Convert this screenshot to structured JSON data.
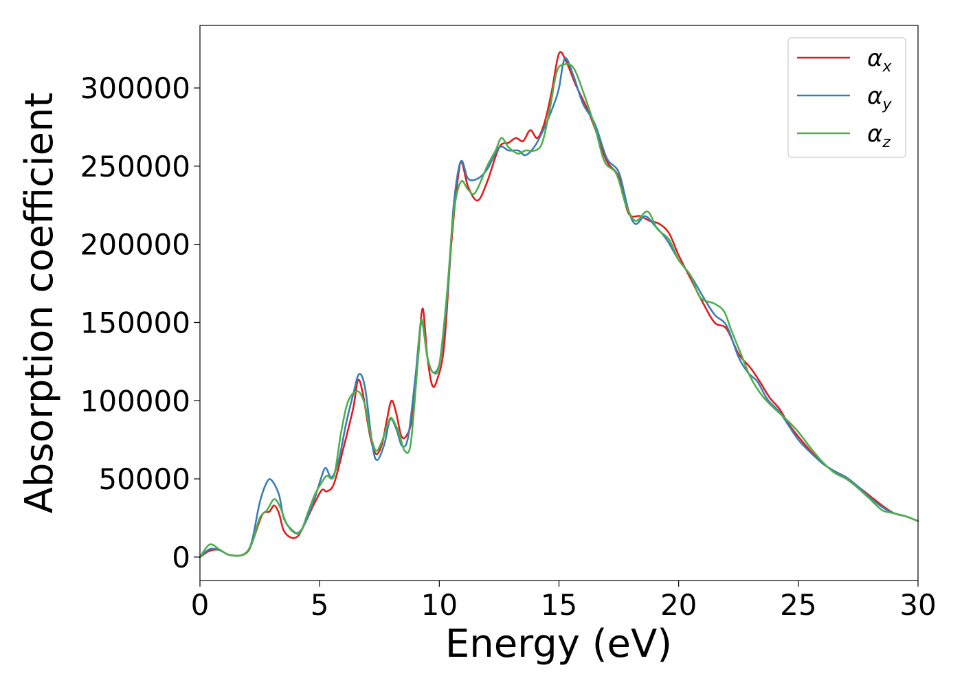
{
  "chart_data": {
    "type": "line",
    "xlabel": "Energy (eV)",
    "ylabel": "Absorption coefficient",
    "xlim": [
      0,
      30
    ],
    "ylim": [
      -15000,
      340000
    ],
    "xticks": [
      0,
      5,
      10,
      15,
      20,
      25,
      30
    ],
    "yticks": [
      0,
      50000,
      100000,
      150000,
      200000,
      250000,
      300000
    ],
    "xtick_labels": [
      "0",
      "5",
      "10",
      "15",
      "20",
      "25",
      "30"
    ],
    "ytick_labels": [
      "0",
      "50000",
      "100000",
      "150000",
      "200000",
      "250000",
      "300000"
    ],
    "grid": false,
    "legend_position": "top-right",
    "series": [
      {
        "name": "α_x",
        "label_main": "α",
        "label_sub": "x",
        "color": "#e41a1c",
        "points": [
          [
            0,
            0
          ],
          [
            0.4,
            4000
          ],
          [
            0.8,
            4500
          ],
          [
            1.2,
            1500
          ],
          [
            1.7,
            1000
          ],
          [
            2.0,
            3500
          ],
          [
            2.2,
            10000
          ],
          [
            2.6,
            27000
          ],
          [
            2.9,
            29000
          ],
          [
            3.1,
            33000
          ],
          [
            3.3,
            28000
          ],
          [
            3.5,
            17000
          ],
          [
            3.8,
            12500
          ],
          [
            4.1,
            13500
          ],
          [
            4.4,
            22000
          ],
          [
            4.8,
            35000
          ],
          [
            5.1,
            43000
          ],
          [
            5.3,
            42000
          ],
          [
            5.6,
            47000
          ],
          [
            6.0,
            70000
          ],
          [
            6.4,
            95000
          ],
          [
            6.6,
            113000
          ],
          [
            6.8,
            105000
          ],
          [
            7.1,
            78000
          ],
          [
            7.35,
            66000
          ],
          [
            7.6,
            72000
          ],
          [
            7.8,
            87000
          ],
          [
            8.0,
            100000
          ],
          [
            8.2,
            92000
          ],
          [
            8.4,
            78000
          ],
          [
            8.6,
            77000
          ],
          [
            8.85,
            88000
          ],
          [
            9.1,
            125000
          ],
          [
            9.3,
            159000
          ],
          [
            9.5,
            128000
          ],
          [
            9.7,
            110000
          ],
          [
            9.9,
            113000
          ],
          [
            10.2,
            135000
          ],
          [
            10.5,
            200000
          ],
          [
            10.8,
            245000
          ],
          [
            10.95,
            252000
          ],
          [
            11.2,
            237000
          ],
          [
            11.6,
            228000
          ],
          [
            12.0,
            240000
          ],
          [
            12.5,
            262000
          ],
          [
            12.9,
            265000
          ],
          [
            13.2,
            268000
          ],
          [
            13.5,
            266000
          ],
          [
            13.8,
            273000
          ],
          [
            14.1,
            268000
          ],
          [
            14.4,
            278000
          ],
          [
            14.7,
            298000
          ],
          [
            15.0,
            322000
          ],
          [
            15.3,
            317000
          ],
          [
            15.7,
            302000
          ],
          [
            16.2,
            286000
          ],
          [
            16.6,
            270000
          ],
          [
            17.0,
            253000
          ],
          [
            17.5,
            243000
          ],
          [
            17.9,
            220000
          ],
          [
            18.4,
            218000
          ],
          [
            18.8,
            215000
          ],
          [
            19.2,
            213000
          ],
          [
            19.6,
            207000
          ],
          [
            20.0,
            193000
          ],
          [
            20.5,
            178000
          ],
          [
            21.0,
            163000
          ],
          [
            21.5,
            150000
          ],
          [
            22.0,
            146000
          ],
          [
            22.5,
            130000
          ],
          [
            23.0,
            121000
          ],
          [
            23.4,
            112000
          ],
          [
            23.8,
            102000
          ],
          [
            24.2,
            95000
          ],
          [
            24.6,
            85000
          ],
          [
            25.0,
            77000
          ],
          [
            25.5,
            68000
          ],
          [
            26.0,
            60000
          ],
          [
            26.5,
            55000
          ],
          [
            27.0,
            51000
          ],
          [
            27.5,
            45000
          ],
          [
            28.0,
            39000
          ],
          [
            28.5,
            33000
          ],
          [
            29.0,
            28000
          ],
          [
            29.5,
            26000
          ],
          [
            30,
            23000
          ]
        ]
      },
      {
        "name": "α_y",
        "label_main": "α",
        "label_sub": "y",
        "color": "#377eb8",
        "points": [
          [
            0,
            0
          ],
          [
            0.4,
            5000
          ],
          [
            0.8,
            4500
          ],
          [
            1.2,
            1500
          ],
          [
            1.7,
            1000
          ],
          [
            2.0,
            4000
          ],
          [
            2.2,
            12000
          ],
          [
            2.5,
            35000
          ],
          [
            2.8,
            48000
          ],
          [
            3.0,
            49000
          ],
          [
            3.3,
            40000
          ],
          [
            3.5,
            25000
          ],
          [
            3.8,
            18000
          ],
          [
            4.1,
            15500
          ],
          [
            4.4,
            22000
          ],
          [
            4.8,
            38000
          ],
          [
            5.05,
            50000
          ],
          [
            5.25,
            57000
          ],
          [
            5.5,
            51000
          ],
          [
            5.8,
            62000
          ],
          [
            6.1,
            85000
          ],
          [
            6.4,
            104000
          ],
          [
            6.65,
            117000
          ],
          [
            6.9,
            108000
          ],
          [
            7.2,
            72000
          ],
          [
            7.4,
            62000
          ],
          [
            7.7,
            72000
          ],
          [
            7.95,
            88000
          ],
          [
            8.2,
            82000
          ],
          [
            8.45,
            71000
          ],
          [
            8.7,
            77000
          ],
          [
            9.0,
            115000
          ],
          [
            9.25,
            150000
          ],
          [
            9.5,
            128000
          ],
          [
            9.75,
            118000
          ],
          [
            10.05,
            127000
          ],
          [
            10.35,
            170000
          ],
          [
            10.6,
            225000
          ],
          [
            10.9,
            253000
          ],
          [
            11.2,
            242000
          ],
          [
            11.6,
            242000
          ],
          [
            12.0,
            248000
          ],
          [
            12.5,
            262000
          ],
          [
            12.9,
            260000
          ],
          [
            13.3,
            260000
          ],
          [
            13.6,
            257000
          ],
          [
            14.0,
            263000
          ],
          [
            14.4,
            275000
          ],
          [
            14.8,
            290000
          ],
          [
            15.0,
            300000
          ],
          [
            15.25,
            319000
          ],
          [
            15.6,
            308000
          ],
          [
            16.0,
            290000
          ],
          [
            16.5,
            277000
          ],
          [
            17.0,
            255000
          ],
          [
            17.5,
            246000
          ],
          [
            17.9,
            222000
          ],
          [
            18.2,
            213000
          ],
          [
            18.6,
            218000
          ],
          [
            19.0,
            212000
          ],
          [
            19.5,
            203000
          ],
          [
            20.0,
            190000
          ],
          [
            20.5,
            180000
          ],
          [
            21.0,
            167000
          ],
          [
            21.5,
            155000
          ],
          [
            22.0,
            148000
          ],
          [
            22.5,
            128000
          ],
          [
            22.9,
            118000
          ],
          [
            23.3,
            112000
          ],
          [
            23.7,
            101000
          ],
          [
            24.2,
            93000
          ],
          [
            24.6,
            84000
          ],
          [
            25.0,
            75000
          ],
          [
            25.5,
            67000
          ],
          [
            26.0,
            60000
          ],
          [
            26.5,
            55000
          ],
          [
            27.0,
            51000
          ],
          [
            27.5,
            45000
          ],
          [
            28.0,
            38000
          ],
          [
            28.5,
            32000
          ],
          [
            29.0,
            28000
          ],
          [
            29.5,
            26000
          ],
          [
            30,
            23000
          ]
        ]
      },
      {
        "name": "α_z",
        "label_main": "α",
        "label_sub": "z",
        "color": "#4daf4a",
        "points": [
          [
            0,
            0
          ],
          [
            0.4,
            8000
          ],
          [
            0.8,
            5000
          ],
          [
            1.2,
            1500
          ],
          [
            1.7,
            1000
          ],
          [
            2.0,
            4000
          ],
          [
            2.2,
            10000
          ],
          [
            2.5,
            25000
          ],
          [
            2.8,
            30000
          ],
          [
            3.1,
            37000
          ],
          [
            3.35,
            32000
          ],
          [
            3.6,
            22000
          ],
          [
            3.9,
            16000
          ],
          [
            4.2,
            16000
          ],
          [
            4.5,
            28000
          ],
          [
            4.8,
            40000
          ],
          [
            5.1,
            48000
          ],
          [
            5.3,
            52000
          ],
          [
            5.6,
            52000
          ],
          [
            5.9,
            80000
          ],
          [
            6.2,
            100000
          ],
          [
            6.6,
            106000
          ],
          [
            6.9,
            97000
          ],
          [
            7.1,
            80000
          ],
          [
            7.35,
            68000
          ],
          [
            7.6,
            74000
          ],
          [
            7.85,
            85000
          ],
          [
            8.0,
            89000
          ],
          [
            8.3,
            80000
          ],
          [
            8.55,
            68000
          ],
          [
            8.8,
            72000
          ],
          [
            9.05,
            115000
          ],
          [
            9.25,
            152000
          ],
          [
            9.5,
            128000
          ],
          [
            9.75,
            118000
          ],
          [
            10.0,
            123000
          ],
          [
            10.3,
            165000
          ],
          [
            10.6,
            220000
          ],
          [
            10.9,
            240000
          ],
          [
            11.2,
            235000
          ],
          [
            11.5,
            233000
          ],
          [
            12.0,
            250000
          ],
          [
            12.35,
            260000
          ],
          [
            12.6,
            268000
          ],
          [
            12.9,
            262000
          ],
          [
            13.3,
            258000
          ],
          [
            13.6,
            260000
          ],
          [
            14.0,
            260000
          ],
          [
            14.3,
            265000
          ],
          [
            14.6,
            285000
          ],
          [
            14.9,
            310000
          ],
          [
            15.2,
            315000
          ],
          [
            15.6,
            313000
          ],
          [
            16.0,
            298000
          ],
          [
            16.5,
            275000
          ],
          [
            16.9,
            253000
          ],
          [
            17.4,
            245000
          ],
          [
            17.8,
            225000
          ],
          [
            18.2,
            215000
          ],
          [
            18.7,
            221000
          ],
          [
            19.1,
            210000
          ],
          [
            19.6,
            203000
          ],
          [
            20.0,
            190000
          ],
          [
            20.5,
            180000
          ],
          [
            20.9,
            166000
          ],
          [
            21.5,
            162000
          ],
          [
            21.9,
            157000
          ],
          [
            22.2,
            145000
          ],
          [
            22.6,
            130000
          ],
          [
            23.0,
            115000
          ],
          [
            23.5,
            103000
          ],
          [
            24.0,
            95000
          ],
          [
            24.5,
            88000
          ],
          [
            25.0,
            80000
          ],
          [
            25.5,
            70000
          ],
          [
            26.0,
            61000
          ],
          [
            26.5,
            54000
          ],
          [
            27.0,
            50000
          ],
          [
            27.5,
            44000
          ],
          [
            28.0,
            37000
          ],
          [
            28.5,
            30000
          ],
          [
            29.0,
            28000
          ],
          [
            29.5,
            26000
          ],
          [
            30,
            23000
          ]
        ]
      }
    ]
  }
}
